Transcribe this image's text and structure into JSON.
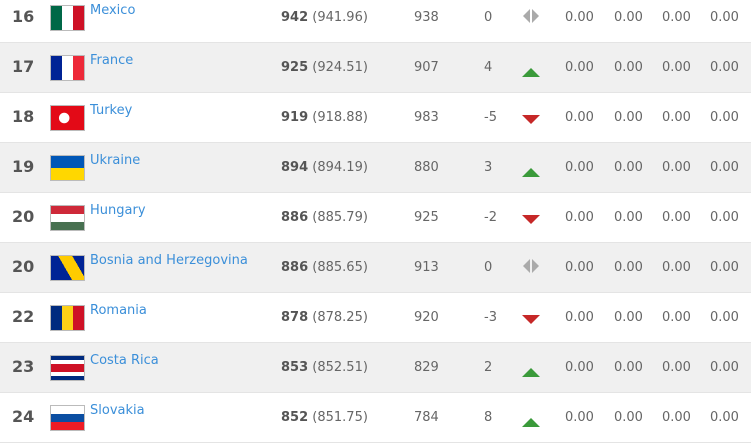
{
  "rows": [
    {
      "rank": "16",
      "country": "Mexico",
      "flag": "mexico",
      "points": "942",
      "exact": "(941.96)",
      "previous": "938",
      "change": "0",
      "trend": "same",
      "c1": "0.00",
      "c2": "0.00",
      "c3": "0.00",
      "c4": "0.00"
    },
    {
      "rank": "17",
      "country": "France",
      "flag": "france",
      "points": "925",
      "exact": "(924.51)",
      "previous": "907",
      "change": "4",
      "trend": "up",
      "c1": "0.00",
      "c2": "0.00",
      "c3": "0.00",
      "c4": "0.00"
    },
    {
      "rank": "18",
      "country": "Turkey",
      "flag": "turkey",
      "points": "919",
      "exact": "(918.88)",
      "previous": "983",
      "change": "-5",
      "trend": "down",
      "c1": "0.00",
      "c2": "0.00",
      "c3": "0.00",
      "c4": "0.00"
    },
    {
      "rank": "19",
      "country": "Ukraine",
      "flag": "ukraine",
      "points": "894",
      "exact": "(894.19)",
      "previous": "880",
      "change": "3",
      "trend": "up",
      "c1": "0.00",
      "c2": "0.00",
      "c3": "0.00",
      "c4": "0.00"
    },
    {
      "rank": "20",
      "country": "Hungary",
      "flag": "hungary",
      "points": "886",
      "exact": "(885.79)",
      "previous": "925",
      "change": "-2",
      "trend": "down",
      "c1": "0.00",
      "c2": "0.00",
      "c3": "0.00",
      "c4": "0.00"
    },
    {
      "rank": "20",
      "country": "Bosnia and Herzegovina",
      "flag": "bosnia",
      "points": "886",
      "exact": "(885.65)",
      "previous": "913",
      "change": "0",
      "trend": "same",
      "c1": "0.00",
      "c2": "0.00",
      "c3": "0.00",
      "c4": "0.00"
    },
    {
      "rank": "22",
      "country": "Romania",
      "flag": "romania",
      "points": "878",
      "exact": "(878.25)",
      "previous": "920",
      "change": "-3",
      "trend": "down",
      "c1": "0.00",
      "c2": "0.00",
      "c3": "0.00",
      "c4": "0.00"
    },
    {
      "rank": "23",
      "country": "Costa Rica",
      "flag": "costa-rica",
      "points": "853",
      "exact": "(852.51)",
      "previous": "829",
      "change": "2",
      "trend": "up",
      "c1": "0.00",
      "c2": "0.00",
      "c3": "0.00",
      "c4": "0.00"
    },
    {
      "rank": "24",
      "country": "Slovakia",
      "flag": "slovakia",
      "points": "852",
      "exact": "(851.75)",
      "previous": "784",
      "change": "8",
      "trend": "up",
      "c1": "0.00",
      "c2": "0.00",
      "c3": "0.00",
      "c4": "0.00"
    }
  ],
  "colors": {
    "link": "#3b8fd9",
    "up": "#3a9a3a",
    "down": "#c62828",
    "same": "#aaaaaa",
    "alt_row": "#f0f0f0"
  }
}
